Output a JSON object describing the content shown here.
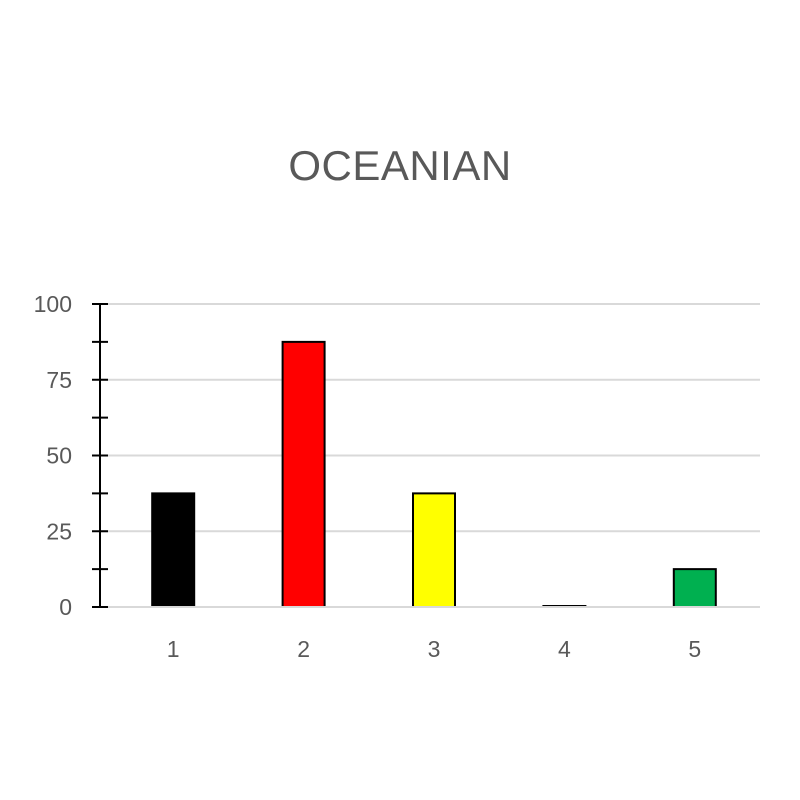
{
  "chart_data": {
    "type": "bar",
    "title": "OCEANIAN",
    "xlabel": "",
    "ylabel": "",
    "categories": [
      "1",
      "2",
      "3",
      "4",
      "5"
    ],
    "values": [
      37.5,
      87.5,
      37.5,
      0,
      12.5
    ],
    "colors": [
      "#000000",
      "#ff0000",
      "#ffff00",
      "#ffffff",
      "#00b050"
    ],
    "ylim": [
      0,
      100
    ],
    "yticks": [
      "0",
      "25",
      "50",
      "75",
      "100"
    ],
    "grid": true,
    "legend": "none"
  }
}
